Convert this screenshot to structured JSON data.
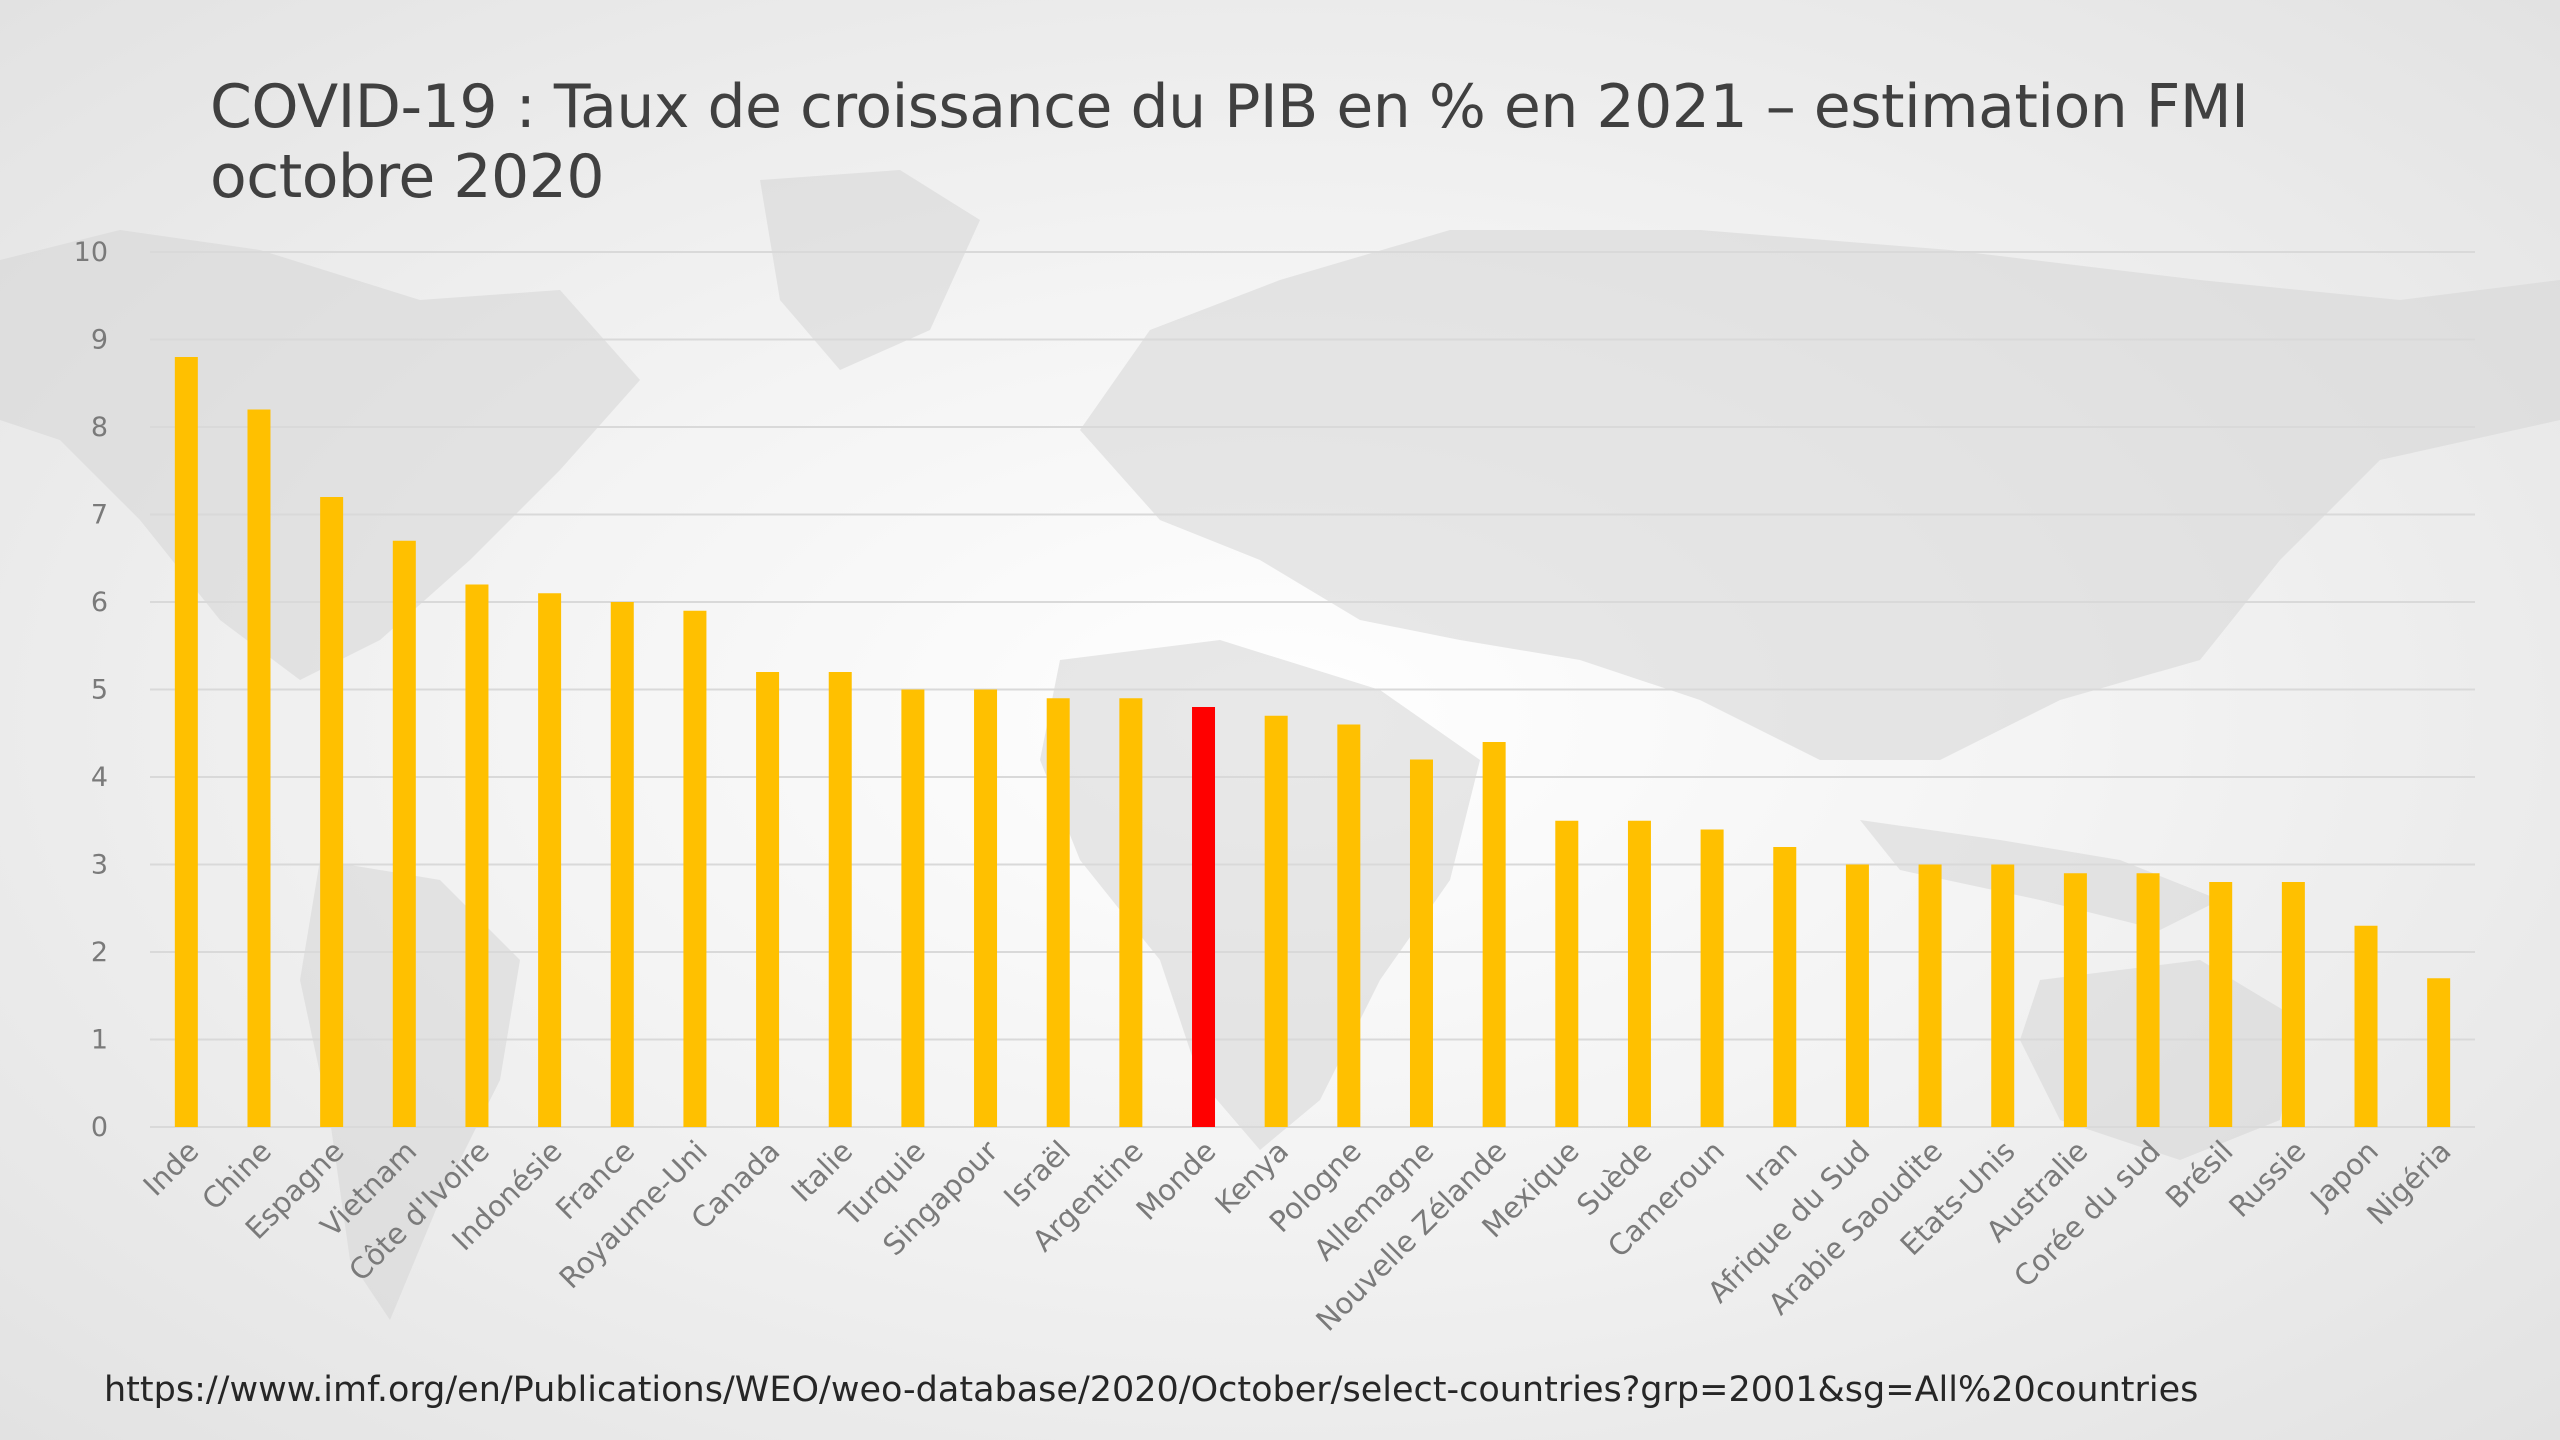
{
  "slide": {
    "title": "COVID-19 : Taux de croissance du PIB en % en 2021 – estimation FMI octobre 2020",
    "source": "https://www.imf.org/en/Publications/WEO/weo-database/2020/October/select-countries?grp=2001&sg=All%20countries"
  },
  "colors": {
    "bar": "#FFC000",
    "highlight": "#FF0000",
    "grid": "#d9d9d9"
  },
  "chart_data": {
    "type": "bar",
    "title": "COVID-19 : Taux de croissance du PIB en % en 2021 – estimation FMI octobre 2020",
    "xlabel": "",
    "ylabel": "",
    "ylim": [
      0,
      10
    ],
    "yticks": [
      0,
      1,
      2,
      3,
      4,
      5,
      6,
      7,
      8,
      9,
      10
    ],
    "grid": true,
    "legend": "none",
    "highlight_category": "Monde",
    "categories": [
      "Inde",
      "Chine",
      "Espagne",
      "Vietnam",
      "Côte d'Ivoire",
      "Indonésie",
      "France",
      "Royaume-Uni",
      "Canada",
      "Italie",
      "Turquie",
      "Singapour",
      "Israël",
      "Argentine",
      "Monde",
      "Kenya",
      "Pologne",
      "Allemagne",
      "Nouvelle Zélande",
      "Mexique",
      "Suède",
      "Cameroun",
      "Iran",
      "Afrique du Sud",
      "Arabie Saoudite",
      "Etats-Unis",
      "Australie",
      "Corée du sud",
      "Brésil",
      "Russie",
      "Japon",
      "Nigéria"
    ],
    "values": [
      8.8,
      8.2,
      7.2,
      6.7,
      6.2,
      6.1,
      6.0,
      5.9,
      5.2,
      5.2,
      5.0,
      5.0,
      4.9,
      4.9,
      4.8,
      4.7,
      4.6,
      4.2,
      4.4,
      3.5,
      3.5,
      3.4,
      3.2,
      3.0,
      3.0,
      3.0,
      2.9,
      2.9,
      2.8,
      2.8,
      2.3,
      1.7
    ]
  }
}
